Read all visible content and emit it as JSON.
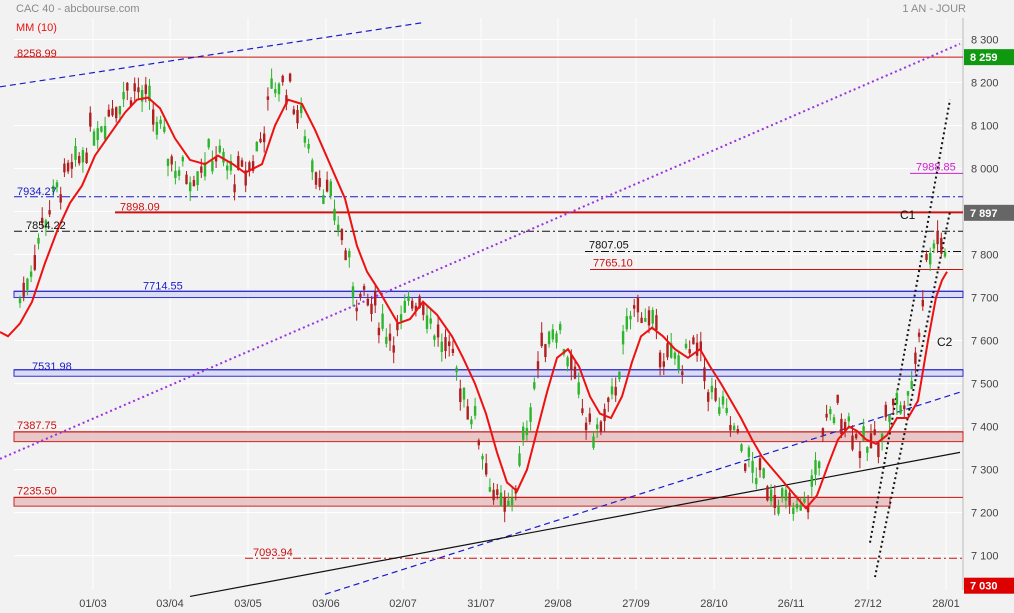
{
  "header": {
    "title": "CAC 40 - abcbourse.com",
    "period": "1 AN - JOUR"
  },
  "legend": {
    "ma_label": "MM (10)"
  },
  "colors": {
    "background": "#f2f2f2",
    "grid": "#ffffff",
    "up": "#2db52d",
    "down": "#b02020",
    "ma": "#ee1111",
    "red_line": "#cc1111",
    "blue_line": "#1a1acc",
    "purple_line": "#9933dd",
    "black_line": "#111111",
    "price_tag": "#666666",
    "resistance_tag": "#109910",
    "support_tag": "#dd0000"
  },
  "chart_data": {
    "type": "candlestick",
    "title": "CAC 40",
    "xlabel": "",
    "ylabel": "",
    "ylim": [
      7020,
      8350
    ],
    "grid": true,
    "x_ticks": [
      "01/03",
      "03/04",
      "03/05",
      "03/06",
      "02/07",
      "31/07",
      "29/08",
      "27/09",
      "28/10",
      "26/11",
      "27/12",
      "28/01"
    ],
    "y_ticks": [
      "7 100",
      "7 200",
      "7 300",
      "7 400",
      "7 500",
      "7 600",
      "7 700",
      "7 800",
      "7 900",
      "8 000",
      "8 100",
      "8 200",
      "8 300"
    ],
    "last_price": "7 897",
    "axis_tags": [
      {
        "text": "8 259",
        "value": 8259,
        "color": "#109910"
      },
      {
        "text": "7 897",
        "value": 7897,
        "color": "#666666"
      },
      {
        "text": "7 030",
        "value": 7030,
        "color": "#dd0000"
      }
    ],
    "level_labels": [
      {
        "text": "8258.99",
        "value": 8258.99,
        "color": "#cc1111"
      },
      {
        "text": "7934.27",
        "value": 7934.27,
        "color": "#1a1acc"
      },
      {
        "text": "7898.09",
        "value": 7898.09,
        "color": "#cc1111"
      },
      {
        "text": "7854.22",
        "value": 7854.22,
        "color": "#111111"
      },
      {
        "text": "7714.55",
        "value": 7714.55,
        "color": "#1a1acc"
      },
      {
        "text": "7531.98",
        "value": 7531.98,
        "color": "#1a1acc"
      },
      {
        "text": "7387.75",
        "value": 7387.75,
        "color": "#cc1111"
      },
      {
        "text": "7235.50",
        "value": 7235.5,
        "color": "#cc1111"
      },
      {
        "text": "7093.94",
        "value": 7093.94,
        "color": "#cc1111"
      },
      {
        "text": "7807.05",
        "value": 7807.05,
        "color": "#111111"
      },
      {
        "text": "7765.10",
        "value": 7765.1,
        "color": "#cc1111"
      },
      {
        "text": "7988.85",
        "value": 7988.85,
        "color": "#cc22cc"
      }
    ],
    "annotations": [
      "C1",
      "C2"
    ],
    "moving_average": {
      "name": "MM (10)",
      "points": [
        [
          0,
          7620
        ],
        [
          8,
          7610
        ],
        [
          20,
          7640
        ],
        [
          32,
          7690
        ],
        [
          45,
          7780
        ],
        [
          58,
          7860
        ],
        [
          70,
          7920
        ],
        [
          82,
          7960
        ],
        [
          95,
          8030
        ],
        [
          110,
          8080
        ],
        [
          125,
          8130
        ],
        [
          137,
          8160
        ],
        [
          148,
          8165
        ],
        [
          160,
          8140
        ],
        [
          175,
          8070
        ],
        [
          190,
          8020
        ],
        [
          205,
          8010
        ],
        [
          218,
          8030
        ],
        [
          233,
          8010
        ],
        [
          245,
          7990
        ],
        [
          262,
          8010
        ],
        [
          275,
          8100
        ],
        [
          288,
          8160
        ],
        [
          302,
          8150
        ],
        [
          315,
          8090
        ],
        [
          330,
          8010
        ],
        [
          345,
          7930
        ],
        [
          357,
          7820
        ],
        [
          367,
          7760
        ],
        [
          378,
          7720
        ],
        [
          388,
          7680
        ],
        [
          398,
          7640
        ],
        [
          410,
          7650
        ],
        [
          423,
          7690
        ],
        [
          437,
          7660
        ],
        [
          452,
          7610
        ],
        [
          463,
          7560
        ],
        [
          475,
          7500
        ],
        [
          486,
          7430
        ],
        [
          497,
          7340
        ],
        [
          507,
          7270
        ],
        [
          517,
          7250
        ],
        [
          527,
          7300
        ],
        [
          537,
          7390
        ],
        [
          547,
          7480
        ],
        [
          557,
          7560
        ],
        [
          568,
          7580
        ],
        [
          579,
          7540
        ],
        [
          590,
          7470
        ],
        [
          600,
          7430
        ],
        [
          611,
          7420
        ],
        [
          622,
          7470
        ],
        [
          632,
          7550
        ],
        [
          641,
          7610
        ],
        [
          652,
          7630
        ],
        [
          663,
          7610
        ],
        [
          675,
          7580
        ],
        [
          688,
          7560
        ],
        [
          700,
          7580
        ],
        [
          710,
          7540
        ],
        [
          721,
          7500
        ],
        [
          731,
          7460
        ],
        [
          741,
          7420
        ],
        [
          752,
          7370
        ],
        [
          762,
          7330
        ],
        [
          773,
          7300
        ],
        [
          784,
          7270
        ],
        [
          795,
          7240
        ],
        [
          806,
          7210
        ],
        [
          817,
          7240
        ],
        [
          828,
          7310
        ],
        [
          838,
          7370
        ],
        [
          849,
          7400
        ],
        [
          857,
          7390
        ],
        [
          866,
          7370
        ],
        [
          876,
          7360
        ],
        [
          887,
          7380
        ],
        [
          897,
          7420
        ],
        [
          908,
          7420
        ],
        [
          918,
          7460
        ],
        [
          928,
          7600
        ],
        [
          936,
          7700
        ],
        [
          942,
          7740
        ],
        [
          947,
          7760
        ]
      ]
    },
    "horizontal_levels": [
      {
        "value": 8258.99,
        "color": "#cc1111",
        "style": "solid"
      },
      {
        "value": 7934.27,
        "color": "#1a1acc",
        "style": "dashdot"
      },
      {
        "value": 7898.09,
        "color": "#cc1111",
        "style": "solid-thick"
      },
      {
        "value": 7854.22,
        "color": "#111111",
        "style": "dashdot"
      },
      {
        "value": 7807.05,
        "color": "#111111",
        "style": "dashdot"
      },
      {
        "value": 7765.1,
        "color": "#cc1111",
        "style": "solid"
      },
      {
        "value": 7714.55,
        "color": "#1a1acc",
        "style": "solid"
      },
      {
        "value": 7531.98,
        "color": "#1a1acc",
        "style": "solid"
      },
      {
        "value": 7387.75,
        "color": "#cc1111",
        "style": "solid"
      },
      {
        "value": 7235.5,
        "color": "#cc1111",
        "style": "solid"
      },
      {
        "value": 7093.94,
        "color": "#cc1111",
        "style": "dashdot"
      },
      {
        "value": 7988.85,
        "color": "#cc22cc",
        "style": "solid"
      }
    ],
    "zones": [
      {
        "from": 7700,
        "to": 7714.55,
        "color": "#1a1acc",
        "fill": "#d9d9f5"
      },
      {
        "from": 7517,
        "to": 7531.98,
        "color": "#1a1acc",
        "fill": "#d9d9f5"
      },
      {
        "from": 7365,
        "to": 7387.75,
        "color": "#cc1111",
        "fill": "#e6c3c3"
      },
      {
        "from": 7215,
        "to": 7235.5,
        "color": "#cc1111",
        "fill": "#e6c3c3"
      }
    ],
    "trend_lines": [
      {
        "name": "purple-channel",
        "p1": [
          0,
          7325
        ],
        "p2": [
          960,
          8290
        ],
        "color": "#9933dd",
        "style": "dotted"
      },
      {
        "name": "blue-upper",
        "p1": [
          0,
          8190
        ],
        "p2": [
          425,
          8340
        ],
        "color": "#1a1acc",
        "style": "dashed"
      },
      {
        "name": "blue-lower",
        "p1": [
          325,
          7010
        ],
        "p2": [
          960,
          7480
        ],
        "color": "#1a1acc",
        "style": "dashed"
      },
      {
        "name": "black-support",
        "p1": [
          190,
          7005
        ],
        "p2": [
          960,
          7340
        ],
        "color": "#111111",
        "style": "solid"
      },
      {
        "name": "black-dotted-1",
        "p1": [
          870,
          7130
        ],
        "p2": [
          950,
          8160
        ],
        "color": "#111111",
        "style": "dotted"
      },
      {
        "name": "black-dotted-2",
        "p1": [
          875,
          7050
        ],
        "p2": [
          950,
          7900
        ],
        "color": "#111111",
        "style": "dotted"
      }
    ]
  }
}
